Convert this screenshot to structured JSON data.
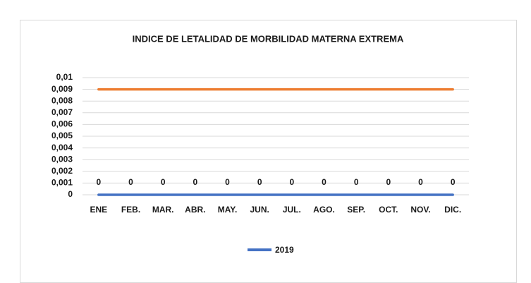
{
  "chart_data": {
    "type": "line",
    "title": "INDICE DE LETALIDAD DE MORBILIDAD  MATERNA EXTREMA",
    "categories": [
      "ENE",
      "FEB.",
      "MAR.",
      "ABR.",
      "MAY.",
      "JUN.",
      "JUL.",
      "AGO.",
      "SEP.",
      "OCT.",
      "NOV.",
      "DIC."
    ],
    "series": [
      {
        "name": "2019",
        "color": "#4472c4",
        "values": [
          0,
          0,
          0,
          0,
          0,
          0,
          0,
          0,
          0,
          0,
          0,
          0
        ],
        "data_labels": true
      },
      {
        "color": "#ed7d31",
        "values": [
          0.009,
          0.009,
          0.009,
          0.009,
          0.009,
          0.009,
          0.009,
          0.009,
          0.009,
          0.009,
          0.009,
          0.009
        ]
      }
    ],
    "ylim": [
      0,
      0.01
    ],
    "yticks": [
      0,
      {
        "value": 0.001,
        "label": "0,001"
      },
      {
        "value": 0.002,
        "label": "0,002"
      },
      {
        "value": 0.003,
        "label": "0,003"
      },
      {
        "value": 0.004,
        "label": "0,004"
      },
      {
        "value": 0.005,
        "label": "0,005"
      },
      {
        "value": 0.006,
        "label": "0,006"
      },
      {
        "value": 0.007,
        "label": "0,007"
      },
      {
        "value": 0.008,
        "label": "0,008"
      },
      {
        "value": 0.009,
        "label": "0,009"
      },
      {
        "value": 0.01,
        "label": "0,01"
      }
    ],
    "grid": true,
    "legend": "bottom"
  }
}
